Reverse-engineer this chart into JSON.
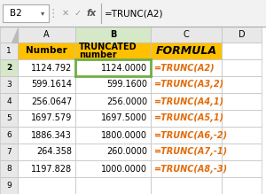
{
  "formula_bar_cell": "B2",
  "formula_bar_formula": "=TRUNC(A2)",
  "col_headers": [
    "A",
    "B",
    "C",
    "D"
  ],
  "header_row_a": "Number",
  "header_row_b1": "TRUNCATED",
  "header_row_b2": "number",
  "header_row_c": "FORMULA",
  "col_a": [
    "1124.792",
    "599.1614",
    "256.0647",
    "1697.579",
    "1886.343",
    "264.358",
    "1197.828"
  ],
  "col_b": [
    "1124.0000",
    "599.1600",
    "256.0000",
    "1697.5000",
    "1800.0000",
    "260.0000",
    "1000.0000"
  ],
  "col_c": [
    "=TRUNC(A2)",
    "=TRUNC(A3,2)",
    "=TRUNC(A4,1)",
    "=TRUNC(A5,1)",
    "=TRUNC(A6,-2)",
    "=TRUNC(A7,-1)",
    "=TRUNC(A8,-3)"
  ],
  "header_bg": "#FFC000",
  "selected_cell_color": "#70AD47",
  "formula_color": "#E26B0A",
  "grid_color": "#C0C0C0",
  "bg_color": "#FFFFFF",
  "toolbar_bg": "#F2F2F2",
  "col_header_bg": "#E8E8E8",
  "col_header_sel_bg": "#D5E8C8",
  "row_header_bg": "#E8E8E8",
  "row_header_sel_bg": "#D5E8C8",
  "fig_width": 3.0,
  "fig_height": 2.19
}
